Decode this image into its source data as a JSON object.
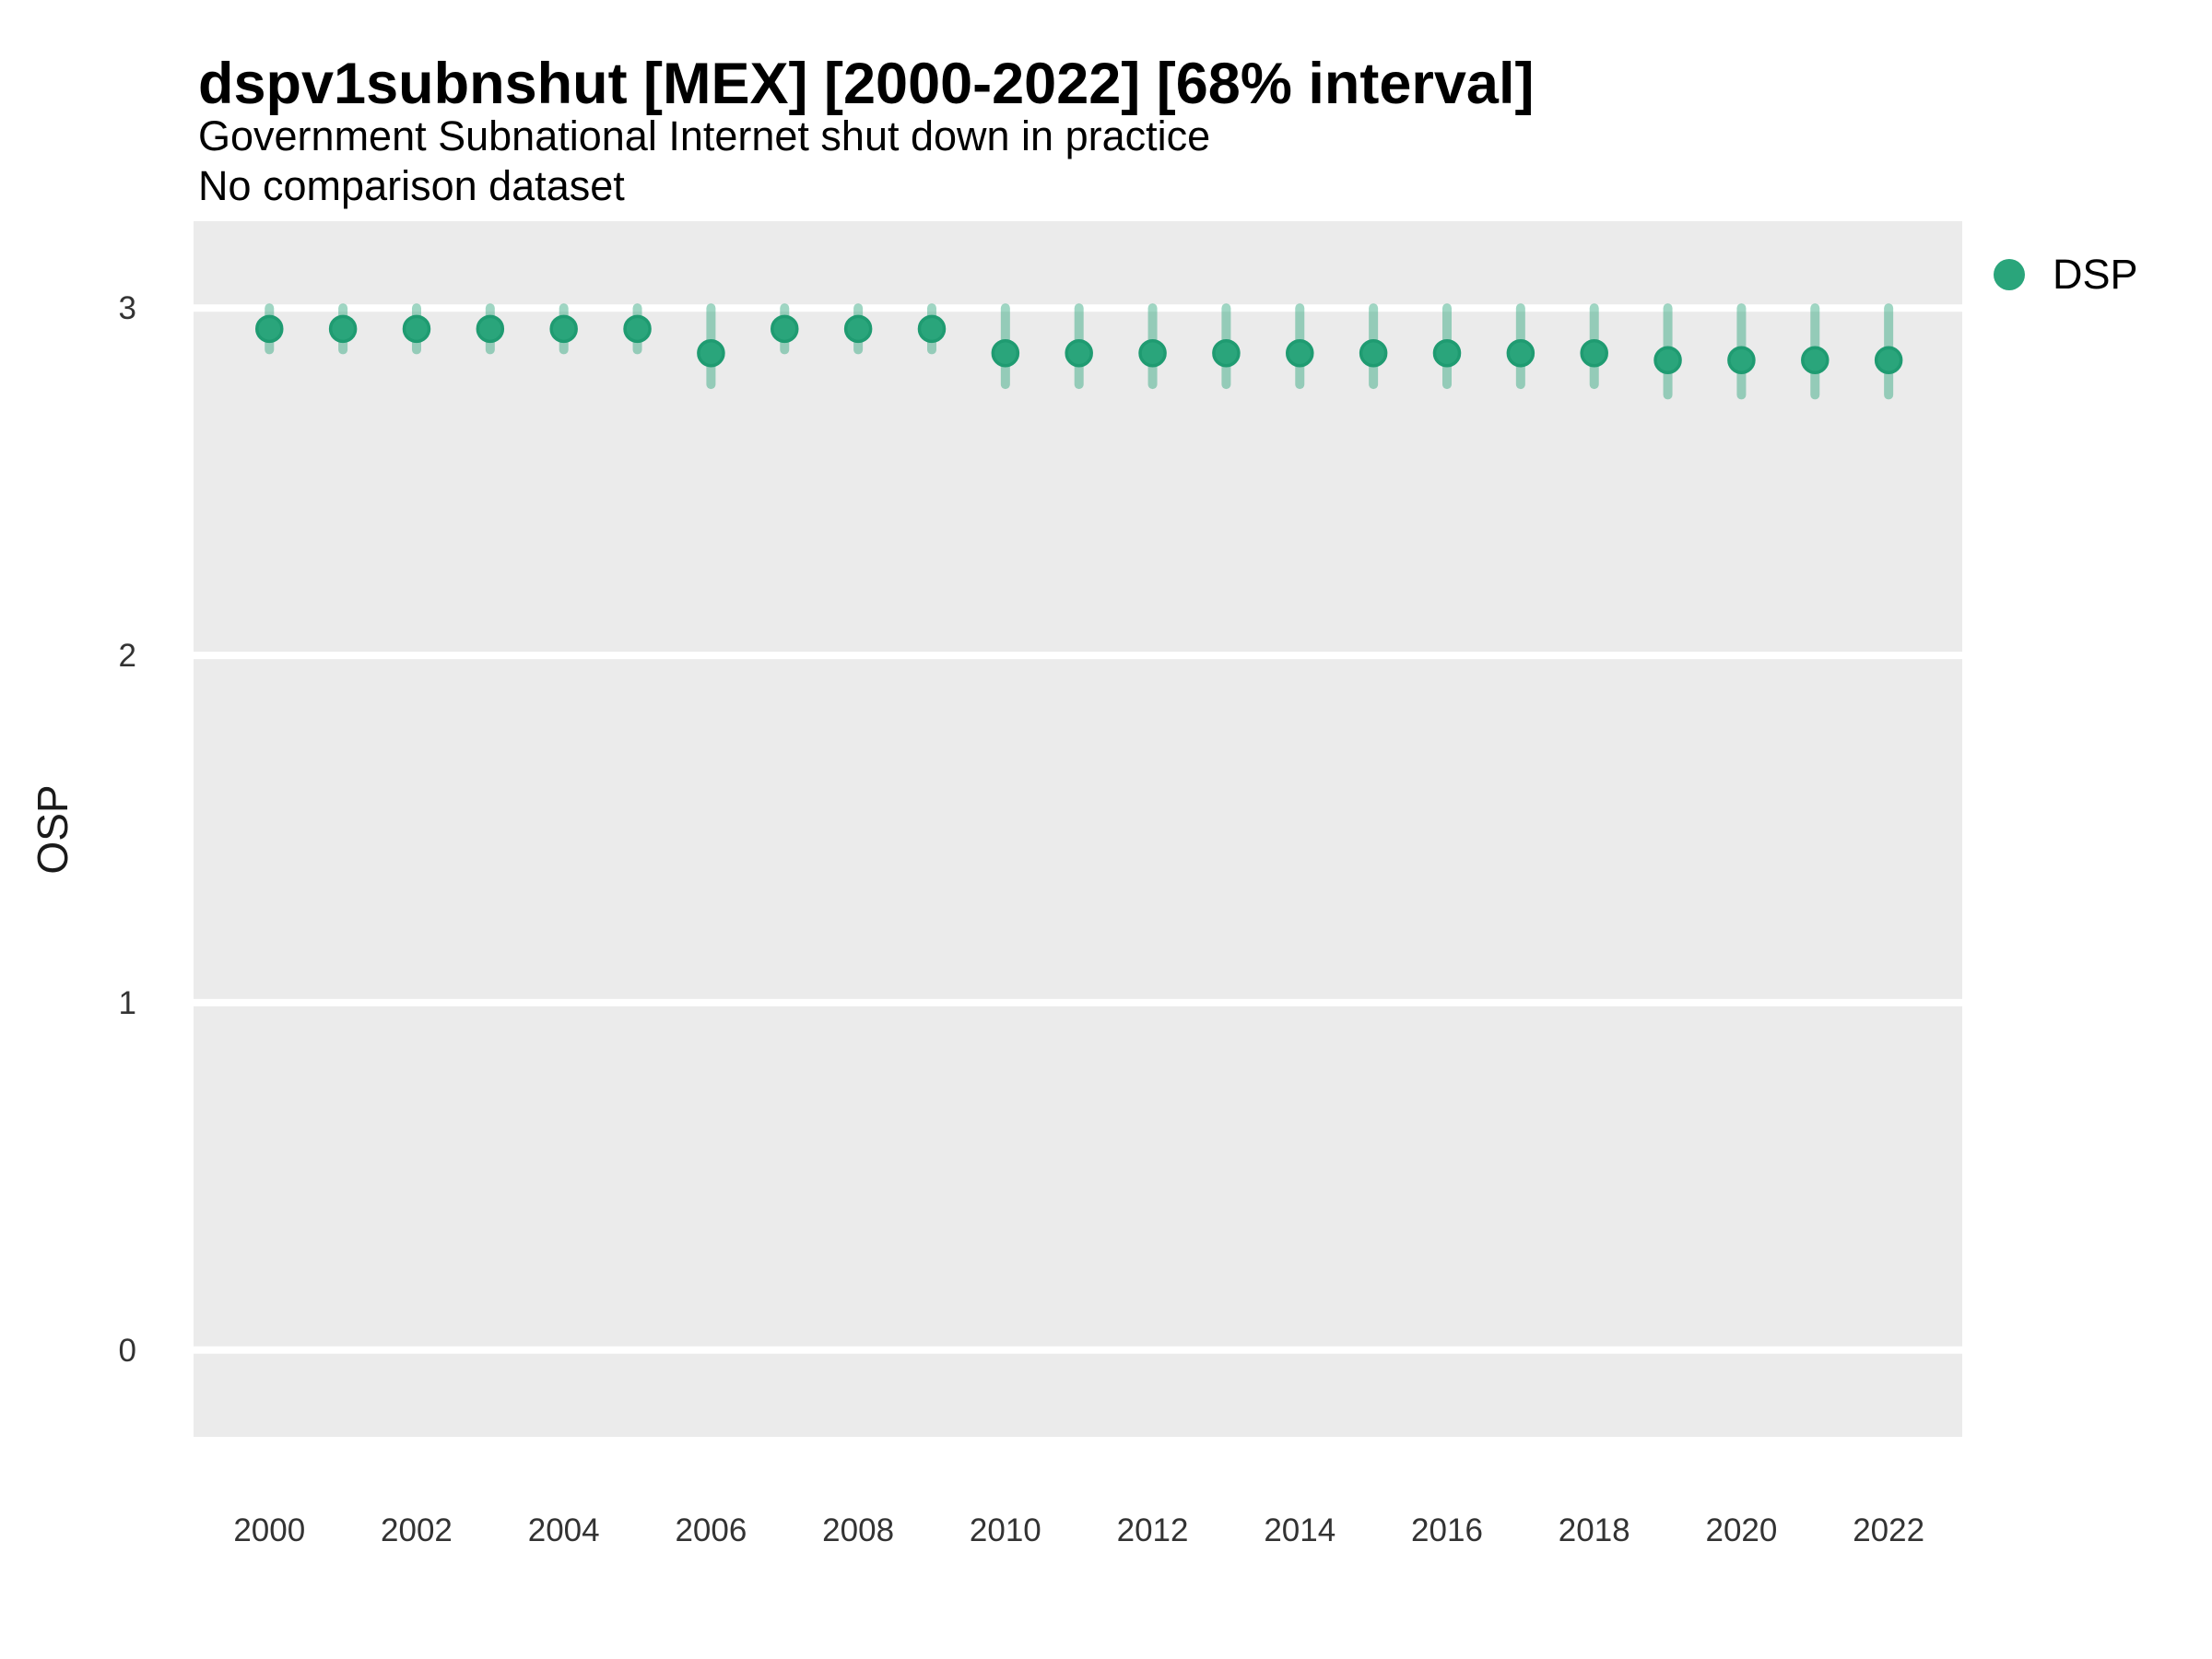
{
  "header": {
    "title": "dspv1subnshut [MEX] [2000-2022] [68% interval]",
    "subtitle": "Government Subnational Internet shut down in practice",
    "note": "No comparison dataset"
  },
  "legend": {
    "position": "right",
    "items": [
      {
        "label": "DSP",
        "color": "#2AA57B"
      }
    ]
  },
  "colors": {
    "point_fill": "#2AA57B",
    "point_border": "#1F9B71",
    "interval_stroke": "#2AA57B",
    "interval_opacity": 0.45,
    "panel_background": "#EBEBEB",
    "gridline": "#FFFFFF",
    "tick_label": "#333333"
  },
  "chart_data": {
    "type": "pointrange-scatter",
    "title": "dspv1subnshut [MEX] [2000-2022] [68% interval]",
    "subtitle": "Government Subnational Internet shut down in practice",
    "note": "No comparison dataset",
    "xlabel": "",
    "ylabel": "OSP",
    "interval_label": "68% interval",
    "country": "MEX",
    "legend_position": "right",
    "grid": "major-y white lines on grey panel, no minor grid, no axis ticks",
    "xlim": [
      1998.97,
      2023.0
    ],
    "ylim": [
      -0.25,
      3.25
    ],
    "xticks": [
      2000,
      2002,
      2004,
      2006,
      2008,
      2010,
      2012,
      2014,
      2016,
      2018,
      2020,
      2022
    ],
    "yticks": [
      0,
      1,
      2,
      3
    ],
    "x": [
      2000,
      2001,
      2002,
      2003,
      2004,
      2005,
      2006,
      2007,
      2008,
      2009,
      2010,
      2011,
      2012,
      2013,
      2014,
      2015,
      2016,
      2017,
      2018,
      2019,
      2020,
      2021,
      2022
    ],
    "series": [
      {
        "name": "DSP",
        "median": [
          2.94,
          2.94,
          2.94,
          2.94,
          2.94,
          2.94,
          2.87,
          2.94,
          2.94,
          2.94,
          2.87,
          2.87,
          2.87,
          2.87,
          2.87,
          2.87,
          2.87,
          2.87,
          2.87,
          2.85,
          2.85,
          2.85,
          2.85
        ],
        "lower": [
          2.88,
          2.88,
          2.88,
          2.88,
          2.88,
          2.88,
          2.78,
          2.88,
          2.88,
          2.88,
          2.78,
          2.78,
          2.78,
          2.78,
          2.78,
          2.78,
          2.78,
          2.78,
          2.78,
          2.75,
          2.75,
          2.75,
          2.75
        ],
        "upper": [
          3.0,
          3.0,
          3.0,
          3.0,
          3.0,
          3.0,
          3.0,
          3.0,
          3.0,
          3.0,
          3.0,
          3.0,
          3.0,
          3.0,
          3.0,
          3.0,
          3.0,
          3.0,
          3.0,
          3.0,
          3.0,
          3.0,
          3.0
        ]
      }
    ]
  }
}
